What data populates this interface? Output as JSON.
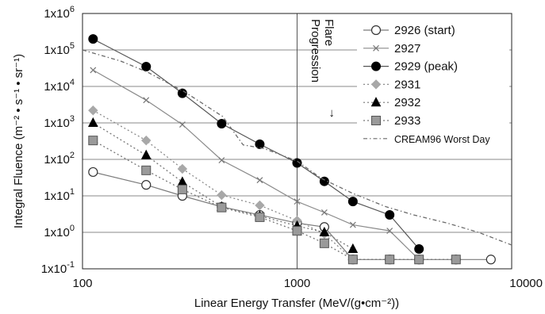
{
  "chart_data": {
    "type": "line",
    "title": "",
    "xlabel": "Linear Energy Transfer (MeV/(g•cm⁻²))",
    "ylabel": "Integral Fluence (m⁻² • s⁻¹ • sr⁻¹)",
    "xscale": "log",
    "yscale": "log",
    "xlim": [
      100,
      10000
    ],
    "ylim": [
      0.1,
      1000000
    ],
    "xticks": [
      {
        "value": 100,
        "label": "100"
      },
      {
        "value": 1000,
        "label": "1000"
      },
      {
        "value": 10000,
        "label": "10000"
      }
    ],
    "yticks": [
      {
        "value": 0.1,
        "base": "1x10",
        "exp": "-1"
      },
      {
        "value": 1,
        "base": "1x10",
        "exp": "0"
      },
      {
        "value": 10,
        "base": "1x10",
        "exp": "1"
      },
      {
        "value": 100,
        "base": "1x10",
        "exp": "2"
      },
      {
        "value": 1000,
        "base": "1x10",
        "exp": "3"
      },
      {
        "value": 10000,
        "base": "1x10",
        "exp": "4"
      },
      {
        "value": 100000,
        "base": "1x10",
        "exp": "5"
      },
      {
        "value": 1000000,
        "base": "1x10",
        "exp": "6"
      }
    ],
    "grid": "horizontal major lines, vertical line at 1000",
    "legend_position": "top-right",
    "annotation": {
      "text_lines": [
        "Flare",
        "Progression"
      ],
      "arrow": "↓",
      "x": 1500
    },
    "series": [
      {
        "name": "2926 (start)",
        "marker": "open-circle",
        "line": "solid",
        "color": "#7a7a7a",
        "x": [
          112,
          198,
          292,
          445,
          670,
          1000,
          1340,
          1820,
          2700,
          3700,
          5500,
          8000
        ],
        "y": [
          45,
          20,
          10,
          5,
          3,
          1.8,
          1.4,
          0.18,
          0.18,
          0.18,
          0.18,
          0.18
        ]
      },
      {
        "name": "2927",
        "marker": "x",
        "line": "solid",
        "color": "#8a8a8a",
        "x": [
          112,
          198,
          292,
          445,
          670,
          1000,
          1340,
          1820,
          2700,
          3700
        ],
        "y": [
          28000,
          4200,
          900,
          95,
          27,
          7,
          3.5,
          1.6,
          1.1,
          0.18
        ]
      },
      {
        "name": "2929 (peak)",
        "marker": "filled-circle",
        "line": "solid",
        "color": "#555555",
        "x": [
          112,
          198,
          292,
          445,
          670,
          1000,
          1340,
          1820,
          2700,
          3700
        ],
        "y": [
          200000,
          35000,
          6500,
          950,
          260,
          80,
          25,
          7,
          3,
          0.35
        ]
      },
      {
        "name": "2931",
        "marker": "diamond",
        "line": "dotted",
        "color": "#8a8a8a",
        "x": [
          112,
          198,
          292,
          445,
          670,
          1000,
          1340,
          1820,
          2700
        ],
        "y": [
          2200,
          330,
          55,
          10.5,
          5.5,
          2.1,
          0.9,
          0.18,
          0.18
        ]
      },
      {
        "name": "2932",
        "marker": "triangle",
        "line": "dotted",
        "color": "#777777",
        "x": [
          112,
          198,
          292,
          445,
          670,
          1000,
          1340,
          1820
        ],
        "y": [
          1000,
          130,
          24,
          5,
          2.8,
          1.5,
          1.0,
          0.35
        ]
      },
      {
        "name": "2933",
        "marker": "square",
        "line": "dotted",
        "color": "#777777",
        "x": [
          112,
          198,
          292,
          445,
          670,
          1000,
          1340,
          1820,
          2700,
          3700,
          5500
        ],
        "y": [
          330,
          50,
          15,
          4.8,
          2.6,
          1.1,
          0.5,
          0.18,
          0.18,
          0.18,
          0.18
        ]
      },
      {
        "name": "CREAM96 Worst Day",
        "marker": "none",
        "line": "dash-dot",
        "color": "#6a6a6a",
        "x": [
          100,
          150,
          200,
          300,
          450,
          560,
          700,
          1000,
          1300,
          1800,
          2600,
          3500,
          5000,
          7000,
          10000
        ],
        "y": [
          100000,
          50000,
          25000,
          7000,
          1500,
          250,
          200,
          90,
          30,
          12,
          5,
          3,
          1.8,
          1.0,
          0.45
        ]
      }
    ]
  }
}
